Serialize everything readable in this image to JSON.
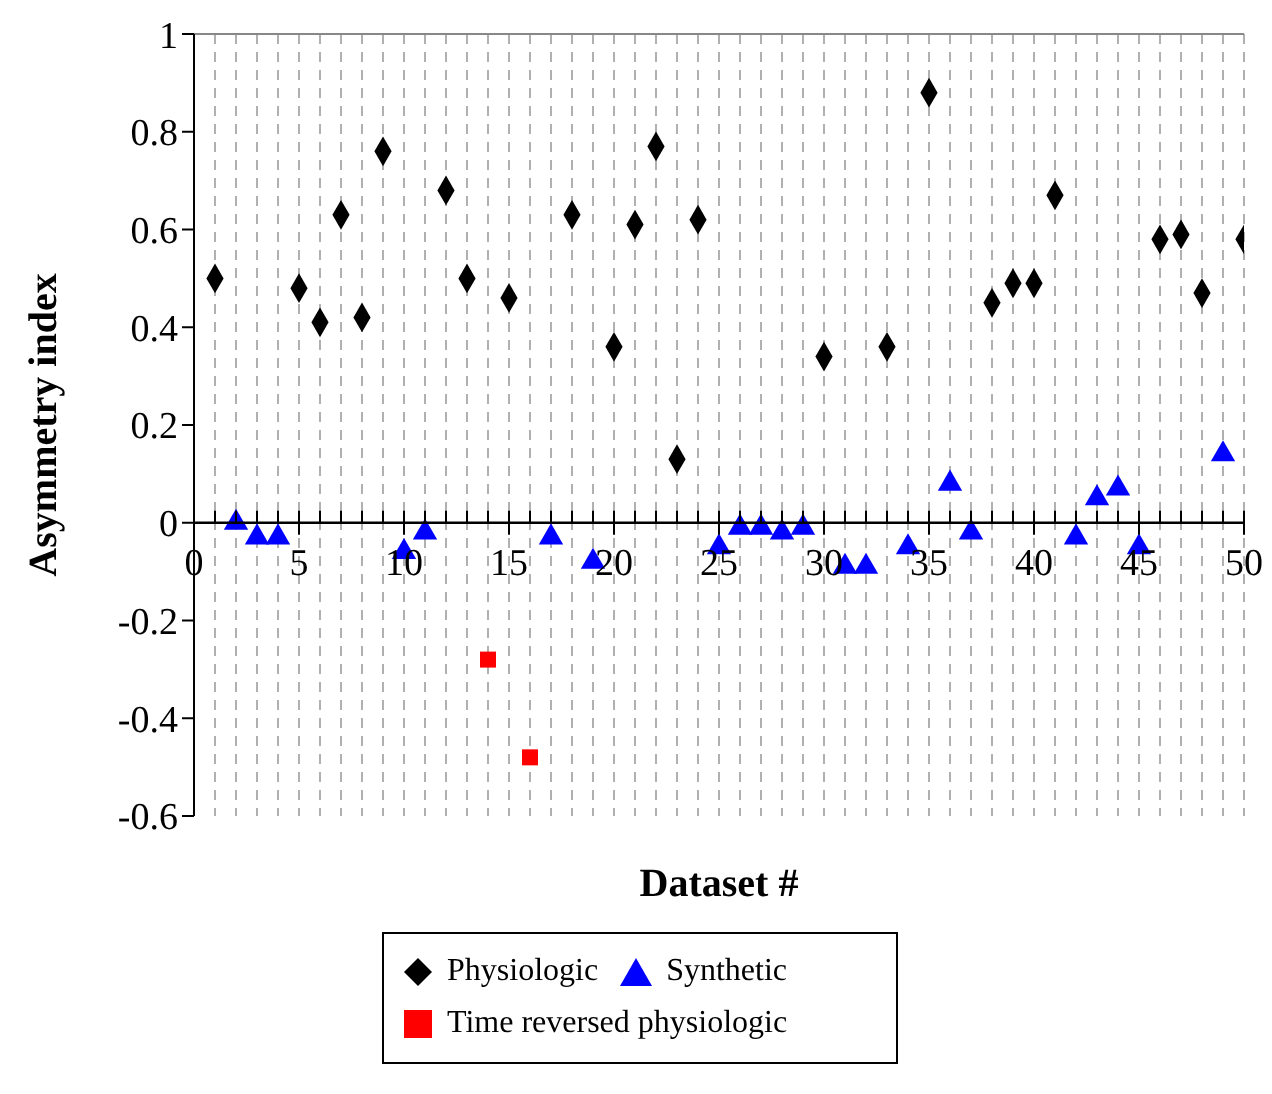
{
  "chart_data": {
    "type": "scatter",
    "xlabel": "Dataset #",
    "ylabel": "Asymmetry index",
    "xlim": [
      0,
      50
    ],
    "ylim": [
      -0.6,
      1
    ],
    "xticks": [
      0,
      {
        "value": 1,
        "label": null
      },
      {
        "value": 2,
        "label": null
      },
      {
        "value": 3,
        "label": null
      },
      {
        "value": 4,
        "label": null
      },
      5,
      {
        "value": 6,
        "label": null
      },
      {
        "value": 7,
        "label": null
      },
      {
        "value": 8,
        "label": null
      },
      {
        "value": 9,
        "label": null
      },
      10,
      {
        "value": 11,
        "label": null
      },
      {
        "value": 12,
        "label": null
      },
      {
        "value": 13,
        "label": null
      },
      {
        "value": 14,
        "label": null
      },
      15,
      {
        "value": 16,
        "label": null
      },
      {
        "value": 17,
        "label": null
      },
      {
        "value": 18,
        "label": null
      },
      {
        "value": 19,
        "label": null
      },
      20,
      {
        "value": 21,
        "label": null
      },
      {
        "value": 22,
        "label": null
      },
      {
        "value": 23,
        "label": null
      },
      {
        "value": 24,
        "label": null
      },
      25,
      {
        "value": 26,
        "label": null
      },
      {
        "value": 27,
        "label": null
      },
      {
        "value": 28,
        "label": null
      },
      {
        "value": 29,
        "label": null
      },
      30,
      {
        "value": 31,
        "label": null
      },
      {
        "value": 32,
        "label": null
      },
      {
        "value": 33,
        "label": null
      },
      {
        "value": 34,
        "label": null
      },
      35,
      {
        "value": 36,
        "label": null
      },
      {
        "value": 37,
        "label": null
      },
      {
        "value": 38,
        "label": null
      },
      {
        "value": 39,
        "label": null
      },
      40,
      {
        "value": 41,
        "label": null
      },
      {
        "value": 42,
        "label": null
      },
      {
        "value": 43,
        "label": null
      },
      {
        "value": 44,
        "label": null
      },
      45,
      {
        "value": 46,
        "label": null
      },
      {
        "value": 47,
        "label": null
      },
      {
        "value": 48,
        "label": null
      },
      {
        "value": 49,
        "label": null
      },
      50
    ],
    "yticks": [
      -0.6,
      -0.4,
      -0.2,
      0,
      0.2,
      0.4,
      0.6,
      0.8,
      1
    ],
    "grid": "x",
    "legend": "bottom",
    "series": [
      {
        "name": "Physiologic",
        "color": "#000000",
        "marker": "diamond",
        "x": [
          1,
          5,
          6,
          7,
          8,
          9,
          12,
          13,
          15,
          18,
          20,
          21,
          22,
          23,
          24,
          30,
          33,
          35,
          38,
          39,
          40,
          41,
          46,
          47,
          48,
          50
        ],
        "values": [
          0.5,
          0.48,
          0.41,
          0.63,
          0.42,
          0.76,
          0.68,
          0.5,
          0.46,
          0.63,
          0.36,
          0.61,
          0.77,
          0.13,
          0.62,
          0.34,
          0.36,
          0.88,
          0.45,
          0.49,
          0.49,
          0.67,
          0.58,
          0.59,
          0.47,
          0.58
        ]
      },
      {
        "name": "Synthetic",
        "color": "#0000ff",
        "marker": "triangle",
        "x": [
          2,
          3,
          4,
          10,
          11,
          17,
          19,
          25,
          26,
          27,
          28,
          29,
          31,
          32,
          34,
          36,
          37,
          42,
          43,
          44,
          45,
          49
        ],
        "values": [
          0,
          -0.03,
          -0.03,
          -0.06,
          -0.02,
          -0.03,
          -0.08,
          -0.05,
          -0.01,
          -0.01,
          -0.02,
          -0.01,
          -0.09,
          -0.09,
          -0.05,
          0.08,
          -0.02,
          -0.03,
          0.05,
          0.07,
          -0.05,
          0.14
        ]
      },
      {
        "name": "Time reversed physiologic",
        "color": "#ff0000",
        "marker": "square",
        "x": [
          14,
          16
        ],
        "values": [
          -0.28,
          -0.48
        ]
      }
    ]
  }
}
